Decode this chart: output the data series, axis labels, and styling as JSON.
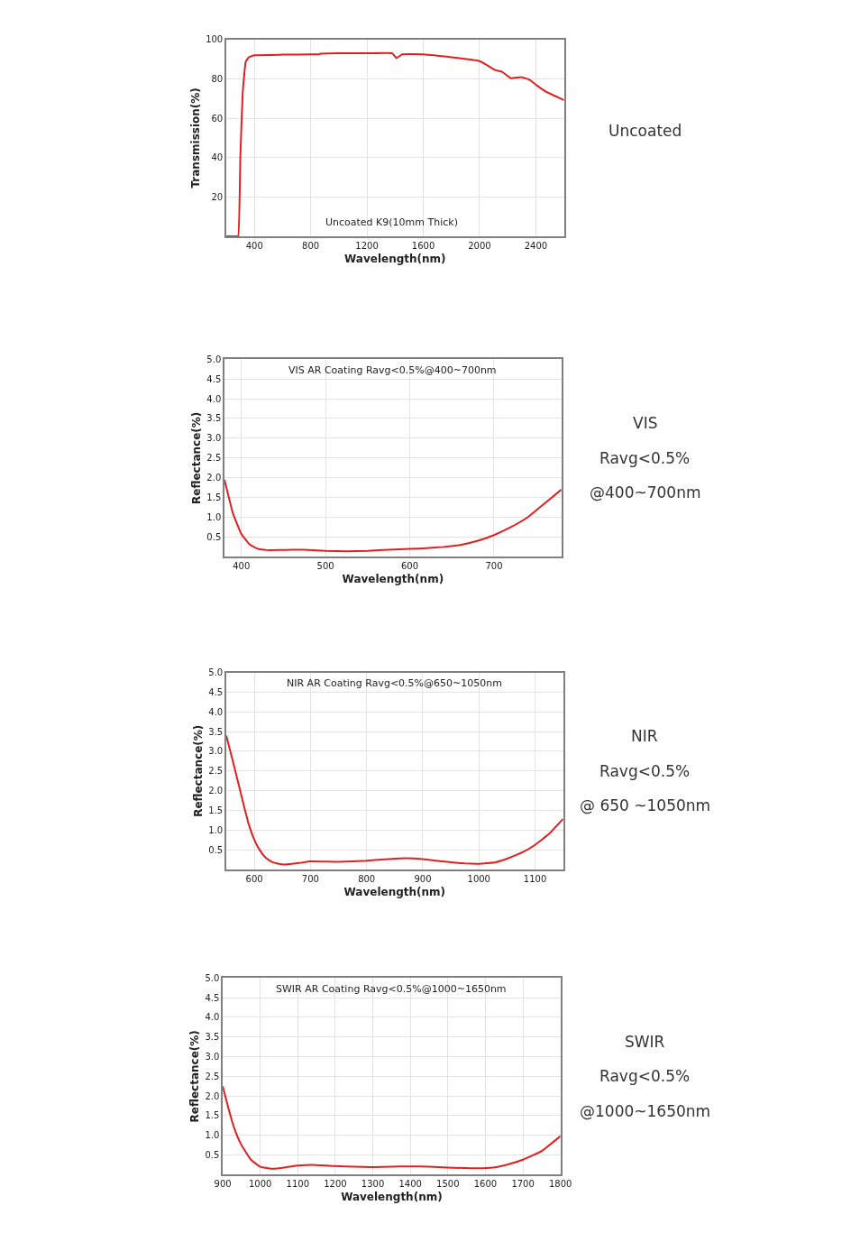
{
  "chart_data": [
    {
      "type": "line",
      "xlabel": "Wavelength(nm)",
      "ylabel": "Transmission(%)",
      "annotations": [
        "Uncoated K9(10mm Thick)",
        "Uncoated"
      ],
      "xlim": [
        200,
        2600
      ],
      "ylim": [
        0,
        100
      ],
      "xticks": [
        400,
        800,
        1200,
        1600,
        2000,
        2400
      ],
      "yticks": [
        20,
        40,
        60,
        80,
        100
      ],
      "grid": true,
      "series": [
        {
          "color": "#e02020",
          "x": [
            200,
            270,
            285,
            300,
            317,
            338,
            360,
            379,
            400,
            600,
            800,
            860,
            870,
            1000,
            1200,
            1380,
            1410,
            1450,
            1600,
            1800,
            2000,
            2057,
            2109,
            2160,
            2223,
            2295,
            2357,
            2420,
            2471,
            2530,
            2591,
            2600
          ],
          "values": [
            0,
            0,
            0,
            40,
            73,
            88.6,
            91,
            91.5,
            92,
            92.3,
            92.5,
            92.5,
            92.8,
            93,
            93,
            93,
            90.6,
            92.5,
            92.5,
            91,
            89,
            86.8,
            84.5,
            83.6,
            80.3,
            80.9,
            79.5,
            76,
            73.5,
            71.5,
            69.5,
            69.2
          ]
        }
      ]
    },
    {
      "type": "line",
      "title": "VIS AR Coating Ravg<0.5%@400~700nm",
      "xlabel": "Wavelength(nm)",
      "ylabel": "Reflectance(%)",
      "annotations": [
        "VIS",
        "Ravg<0.5%",
        "@400~700nm"
      ],
      "xlim": [
        380,
        780
      ],
      "ylim": [
        0,
        5
      ],
      "xticks": [
        400,
        500,
        600,
        700
      ],
      "yticks": [
        0.5,
        {
          "value": 1,
          "label": "1.0"
        },
        1.5,
        {
          "value": 2,
          "label": "2.0"
        },
        2.5,
        {
          "value": 3,
          "label": "3.0"
        },
        3.5,
        {
          "value": 4,
          "label": "4.0"
        },
        4.5,
        {
          "value": 5,
          "label": "5.0"
        }
      ],
      "grid": true,
      "series": [
        {
          "color": "#e02020",
          "x": [
            380,
            390,
            400,
            410,
            420,
            430,
            445,
            460,
            475,
            490,
            500,
            525,
            550,
            575,
            600,
            620,
            640,
            660,
            680,
            700,
            720,
            740,
            760,
            780
          ],
          "values": [
            1.95,
            1.1,
            0.58,
            0.31,
            0.2,
            0.17,
            0.17,
            0.18,
            0.18,
            0.16,
            0.15,
            0.14,
            0.15,
            0.18,
            0.2,
            0.22,
            0.25,
            0.3,
            0.4,
            0.55,
            0.75,
            1.0,
            1.35,
            1.7
          ]
        }
      ]
    },
    {
      "type": "line",
      "title": "NIR AR Coating Ravg<0.5%@650~1050nm",
      "xlabel": "Wavelength(nm)",
      "ylabel": "Reflectance(%)",
      "annotations": [
        "NIR",
        "Ravg<0.5%",
        "@ 650 ~1050nm"
      ],
      "xlim": [
        550,
        1150
      ],
      "ylim": [
        0,
        5
      ],
      "xticks": [
        600,
        700,
        800,
        900,
        1000,
        1100
      ],
      "yticks": [
        0.5,
        {
          "value": 1,
          "label": "1.0"
        },
        1.5,
        {
          "value": 2,
          "label": "2.0"
        },
        2.5,
        {
          "value": 3,
          "label": "3.0"
        },
        3.5,
        {
          "value": 4,
          "label": "4.0"
        },
        4.5,
        {
          "value": 5,
          "label": "5.0"
        }
      ],
      "grid": true,
      "series": [
        {
          "color": "#e02020",
          "x": [
            550,
            560,
            570,
            580,
            590,
            600,
            610,
            620,
            630,
            640,
            655,
            680,
            700,
            750,
            800,
            840,
            870,
            900,
            930,
            950,
            975,
            1000,
            1030,
            1050,
            1080,
            1100,
            1125,
            1150
          ],
          "values": [
            3.4,
            2.85,
            2.28,
            1.7,
            1.15,
            0.75,
            0.48,
            0.3,
            0.2,
            0.15,
            0.12,
            0.16,
            0.2,
            0.19,
            0.22,
            0.26,
            0.28,
            0.26,
            0.21,
            0.18,
            0.15,
            0.14,
            0.18,
            0.27,
            0.45,
            0.62,
            0.9,
            1.28
          ]
        }
      ]
    },
    {
      "type": "line",
      "title": "SWIR AR Coating Ravg<0.5%@1000~1650nm",
      "xlabel": "Wavelength(nm)",
      "ylabel": "Reflectance(%)",
      "annotations": [
        "SWIR",
        "Ravg<0.5%",
        "@1000~1650nm"
      ],
      "xlim": [
        900,
        1800
      ],
      "ylim": [
        0,
        5
      ],
      "xticks": [
        900,
        1000,
        1100,
        1200,
        1300,
        1400,
        1500,
        1600,
        1700,
        1800
      ],
      "yticks": [
        0.5,
        {
          "value": 1,
          "label": "1.0"
        },
        1.5,
        {
          "value": 2,
          "label": "2.0"
        },
        2.5,
        {
          "value": 3,
          "label": "3.0"
        },
        3.5,
        {
          "value": 4,
          "label": "4.0"
        },
        4.5,
        {
          "value": 5,
          "label": "5.0"
        }
      ],
      "grid": true,
      "series": [
        {
          "color": "#e02020",
          "x": [
            900,
            912,
            925,
            937,
            950,
            975,
            1000,
            1035,
            1070,
            1100,
            1140,
            1200,
            1250,
            1300,
            1350,
            1400,
            1450,
            1500,
            1580,
            1620,
            1660,
            1700,
            1750,
            1800
          ],
          "values": [
            2.25,
            1.8,
            1.35,
            1.02,
            0.75,
            0.38,
            0.2,
            0.15,
            0.19,
            0.23,
            0.25,
            0.22,
            0.2,
            0.19,
            0.2,
            0.21,
            0.2,
            0.18,
            0.16,
            0.18,
            0.26,
            0.38,
            0.6,
            0.98
          ]
        }
      ]
    }
  ]
}
